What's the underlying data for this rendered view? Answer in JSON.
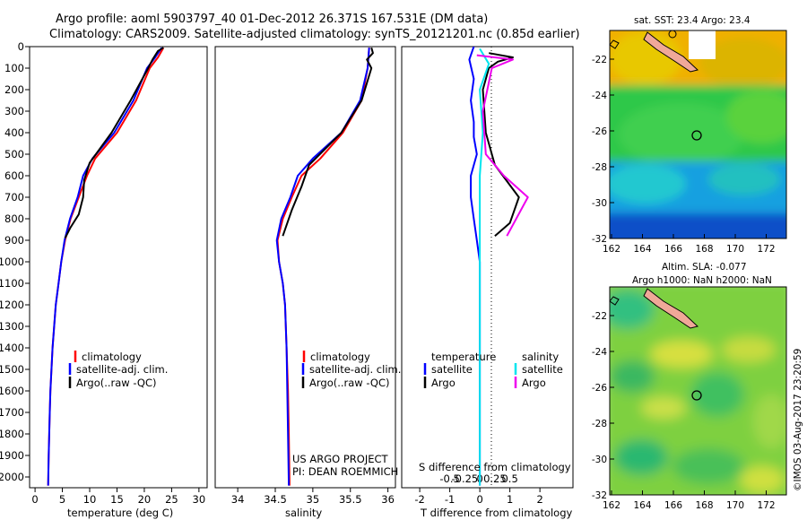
{
  "header": {
    "title_line1": "Argo profile: aoml 5903797_40 01-Dec-2012 26.371S 167.531E (DM data)",
    "title_line2": "Climatology: CARS2009. Satellite-adjusted climatology: synTS_20121201.nc (0.85d earlier)"
  },
  "colors": {
    "climatology": "#ff0000",
    "satellite": "#0000ff",
    "argo": "#000000",
    "sat_salinity": "#00e5ee",
    "argo_salinity": "#ee00ee"
  },
  "chart_data": [
    {
      "type": "line",
      "xlabel": "temperature (deg C)",
      "ylabel": "",
      "xlim": [
        -1,
        31.5
      ],
      "ylim": [
        2050,
        0
      ],
      "xticks": [
        0,
        5,
        10,
        15,
        20,
        25,
        30
      ],
      "yticks": [
        0,
        100,
        200,
        300,
        400,
        500,
        600,
        700,
        800,
        900,
        1000,
        1100,
        1200,
        1300,
        1400,
        1500,
        1600,
        1700,
        1800,
        1900,
        2000
      ],
      "legend": [
        "climatology",
        "satellite-adj. clim.",
        "Argo(..raw -QC)"
      ],
      "series": [
        {
          "name": "climatology",
          "points": [
            [
              23.5,
              5
            ],
            [
              22.5,
              50
            ],
            [
              21,
              100
            ],
            [
              18.5,
              250
            ],
            [
              15,
              400
            ],
            [
              11,
              520
            ],
            [
              9.5,
              600
            ],
            [
              8,
              700
            ],
            [
              6.5,
              800
            ],
            [
              5.5,
              900
            ],
            [
              4.8,
              1000
            ],
            [
              4.3,
              1100
            ],
            [
              3.8,
              1200
            ],
            [
              3.5,
              1300
            ],
            [
              3.2,
              1400
            ],
            [
              3,
              1500
            ],
            [
              2.8,
              1600
            ],
            [
              2.7,
              1700
            ],
            [
              2.6,
              1800
            ],
            [
              2.5,
              1900
            ],
            [
              2.4,
              2040
            ]
          ]
        },
        {
          "name": "satellite-adj. clim.",
          "points": [
            [
              23.2,
              5
            ],
            [
              22,
              50
            ],
            [
              20.5,
              100
            ],
            [
              18,
              250
            ],
            [
              14.5,
              400
            ],
            [
              10.5,
              520
            ],
            [
              8.8,
              600
            ],
            [
              7.8,
              700
            ],
            [
              6.4,
              800
            ],
            [
              5.4,
              900
            ],
            [
              4.8,
              1000
            ],
            [
              4.3,
              1100
            ],
            [
              3.8,
              1200
            ],
            [
              3.5,
              1300
            ],
            [
              3.2,
              1400
            ],
            [
              3,
              1500
            ],
            [
              2.8,
              1600
            ],
            [
              2.7,
              1700
            ],
            [
              2.6,
              1800
            ],
            [
              2.5,
              1900
            ],
            [
              2.4,
              2040
            ]
          ]
        },
        {
          "name": "Argo(..raw -QC)",
          "points": [
            [
              23.5,
              5
            ],
            [
              22.5,
              20
            ],
            [
              21.5,
              60
            ],
            [
              20.5,
              110
            ],
            [
              17.5,
              250
            ],
            [
              14,
              400
            ],
            [
              10,
              540
            ],
            [
              9,
              620
            ],
            [
              8.8,
              700
            ],
            [
              8,
              780
            ],
            [
              6.5,
              840
            ],
            [
              5.5,
              890
            ]
          ]
        }
      ]
    },
    {
      "type": "line",
      "xlabel": "salinity",
      "xlim": [
        33.7,
        36.1
      ],
      "ylim": [
        2050,
        0
      ],
      "xticks": [
        34,
        34.5,
        35,
        35.5,
        36
      ],
      "legend": [
        "climatology",
        "satellite-adj. clim.",
        "Argo(..raw -QC)"
      ],
      "annotation": [
        "US ARGO PROJECT",
        "PI: DEAN ROEMMICH"
      ],
      "series": [
        {
          "name": "climatology",
          "points": [
            [
              35.75,
              5
            ],
            [
              35.73,
              100
            ],
            [
              35.65,
              250
            ],
            [
              35.4,
              400
            ],
            [
              35.1,
              520
            ],
            [
              34.85,
              600
            ],
            [
              34.72,
              700
            ],
            [
              34.6,
              800
            ],
            [
              34.53,
              900
            ],
            [
              34.55,
              1000
            ],
            [
              34.6,
              1100
            ],
            [
              34.63,
              1200
            ],
            [
              34.65,
              1400
            ],
            [
              34.67,
              1600
            ],
            [
              34.68,
              1800
            ],
            [
              34.69,
              2040
            ]
          ]
        },
        {
          "name": "satellite-adj. clim.",
          "points": [
            [
              35.75,
              5
            ],
            [
              35.73,
              100
            ],
            [
              35.63,
              250
            ],
            [
              35.38,
              400
            ],
            [
              35.0,
              520
            ],
            [
              34.8,
              600
            ],
            [
              34.7,
              700
            ],
            [
              34.58,
              800
            ],
            [
              34.52,
              900
            ],
            [
              34.55,
              1000
            ],
            [
              34.6,
              1100
            ],
            [
              34.63,
              1200
            ],
            [
              34.65,
              1400
            ],
            [
              34.66,
              1600
            ],
            [
              34.67,
              1800
            ],
            [
              34.68,
              2040
            ]
          ]
        },
        {
          "name": "Argo(..raw -QC)",
          "points": [
            [
              35.78,
              5
            ],
            [
              35.8,
              30
            ],
            [
              35.72,
              60
            ],
            [
              35.78,
              100
            ],
            [
              35.65,
              250
            ],
            [
              35.38,
              400
            ],
            [
              34.95,
              550
            ],
            [
              34.85,
              650
            ],
            [
              34.72,
              760
            ],
            [
              34.6,
              880
            ]
          ]
        }
      ]
    },
    {
      "type": "line",
      "xlabel": "T difference from climatology",
      "xlabel_top": "S difference from climatology",
      "xlim": [
        -2.6,
        3.1
      ],
      "ylim": [
        2050,
        0
      ],
      "xticks": [
        -2,
        -1,
        0,
        1,
        2
      ],
      "xticks_top": [
        "-0.5",
        "-0.25",
        "0",
        "0.25",
        "0.5"
      ],
      "legend_temperature": [
        "temperature",
        "satellite",
        "Argo"
      ],
      "legend_salinity": [
        "salinity",
        "satellite",
        "Argo"
      ],
      "series": [
        {
          "name": "temperature satellite",
          "points": [
            [
              -0.2,
              0
            ],
            [
              -0.35,
              60
            ],
            [
              -0.2,
              150
            ],
            [
              -0.3,
              250
            ],
            [
              -0.2,
              350
            ],
            [
              -0.2,
              420
            ],
            [
              -0.1,
              500
            ],
            [
              -0.3,
              600
            ],
            [
              -0.3,
              700
            ],
            [
              -0.2,
              800
            ],
            [
              -0.1,
              900
            ],
            [
              0,
              1000
            ],
            [
              0,
              1100
            ],
            [
              0,
              1300
            ],
            [
              0,
              1500
            ],
            [
              0,
              1700
            ],
            [
              0,
              1900
            ],
            [
              0,
              2040
            ]
          ]
        },
        {
          "name": "temperature Argo",
          "points": [
            [
              0.3,
              30
            ],
            [
              1.1,
              50
            ],
            [
              0.6,
              70
            ],
            [
              0.3,
              100
            ],
            [
              0.1,
              200
            ],
            [
              0.2,
              400
            ],
            [
              0.5,
              550
            ],
            [
              1.3,
              700
            ],
            [
              1.0,
              820
            ],
            [
              0.5,
              880
            ]
          ]
        },
        {
          "name": "salinity satellite",
          "points": [
            [
              0,
              10
            ],
            [
              0.15,
              80
            ],
            [
              0,
              200
            ],
            [
              0.05,
              400
            ],
            [
              0,
              600
            ],
            [
              0,
              800
            ],
            [
              0,
              1000
            ],
            [
              0,
              1200
            ],
            [
              0,
              1400
            ],
            [
              0,
              1600
            ],
            [
              0,
              1800
            ],
            [
              0,
              2040
            ]
          ]
        },
        {
          "name": "salinity Argo",
          "points": [
            [
              -0.05,
              40
            ],
            [
              0.55,
              60
            ],
            [
              0.2,
              100
            ],
            [
              0.05,
              300
            ],
            [
              0.1,
              500
            ],
            [
              0.4,
              600
            ],
            [
              0.8,
              700
            ],
            [
              0.45,
              880
            ]
          ]
        }
      ]
    }
  ],
  "maps": {
    "top_title": "sat. SST: 23.4  Argo: 23.4",
    "bottom_title_line1": "Altim. SLA: -0.077",
    "bottom_title_line2": "Argo h1000: NaN h2000: NaN",
    "xticks": [
      "162",
      "164",
      "166",
      "168",
      "170",
      "172"
    ],
    "yticks": [
      "-22",
      "-24",
      "-26",
      "-28",
      "-30",
      "-32"
    ]
  },
  "watermark": "©IMOS 03-Aug-2017 23:20:59"
}
